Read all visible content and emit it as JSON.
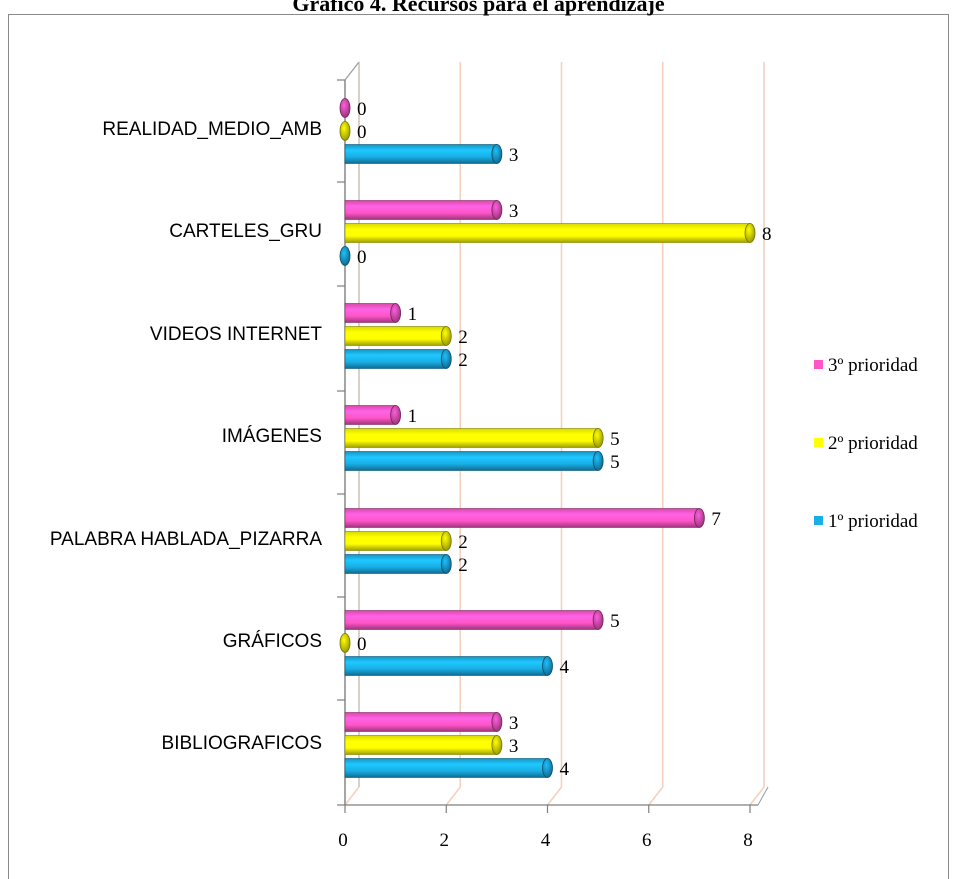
{
  "chart_data": {
    "type": "bar",
    "orientation": "horizontal",
    "title": "Gráfico 4. Recursos para el aprendizaje",
    "categories": [
      "REALIDAD_MEDIO_AMB",
      "CARTELES_GRU",
      "VIDEOS INTERNET",
      "IMÁGENES",
      "PALABRA HABLADA_PIZARRA",
      "GRÁFICOS",
      "BIBLIOGRAFICOS"
    ],
    "series": [
      {
        "name": "3º prioridad",
        "color": "#ff55c8",
        "values": [
          0,
          3,
          1,
          1,
          7,
          5,
          3
        ]
      },
      {
        "name": "2º prioridad",
        "color": "#ffff00",
        "values": [
          0,
          8,
          2,
          5,
          2,
          0,
          3
        ]
      },
      {
        "name": "1º prioridad",
        "color": "#1aaee6",
        "values": [
          3,
          0,
          2,
          5,
          2,
          4,
          4
        ]
      }
    ],
    "x_ticks": [
      "0",
      "2",
      "4",
      "6",
      "8"
    ],
    "xlim": [
      0,
      8
    ],
    "grid": true,
    "grid_color": "#f2d2bf",
    "legend_position": "right",
    "data_labels": true
  }
}
